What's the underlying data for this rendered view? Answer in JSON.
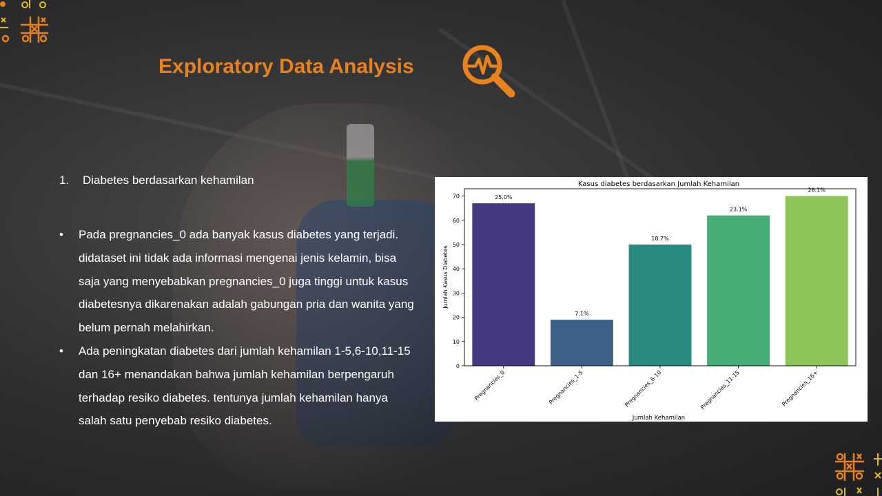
{
  "slide": {
    "title": "Exploratory Data Analysis",
    "title_icon": "magnifier-heartbeat-icon",
    "accent_color": "#e8821e"
  },
  "section": {
    "number": "1.",
    "heading": "Diabetes berdasarkan kehamilan"
  },
  "bullets": [
    {
      "marker": "•",
      "text": "Pada pregnancies_0 ada banyak kasus diabetes yang terjadi. didataset ini tidak ada informasi mengenai jenis kelamin, bisa saja yang menyebabkan pregnancies_0 juga tinggi untuk kasus diabetesnya dikarenakan adalah gabungan pria dan wanita yang belum pernah melahirkan."
    },
    {
      "marker": "•",
      "text": "Ada peningkatan diabetes dari jumlah kehamilan 1-5,6-10,11-15 dan 16+ menandakan bahwa jumlah kehamilan berpengaruh terhadap resiko diabetes. tentunya jumlah kehamilan hanya salah satu penyebab resiko diabetes."
    }
  ],
  "chart_data": {
    "type": "bar",
    "title": "Kasus diabetes berdasarkan Jumlah Kehamilan",
    "xlabel": "Jumlah Kehamilan",
    "ylabel": "Jumlah Kasus Diabetes",
    "categories": [
      "Pregnancies_0",
      "Pregnancies_1-5",
      "Pregnancies_6-10",
      "Pregnancies_11-15",
      "Pregnancies_16+"
    ],
    "values": [
      67,
      19,
      50,
      62,
      70
    ],
    "labels": [
      "25.0%",
      "7.1%",
      "18.7%",
      "23.1%",
      "26.1%"
    ],
    "colors": [
      "#443983",
      "#3b6187",
      "#2a8a80",
      "#45ac75",
      "#8cc457"
    ],
    "yticks": [
      0,
      10,
      20,
      30,
      40,
      50,
      60,
      70
    ],
    "ylim": [
      0,
      73
    ],
    "grid": false
  }
}
